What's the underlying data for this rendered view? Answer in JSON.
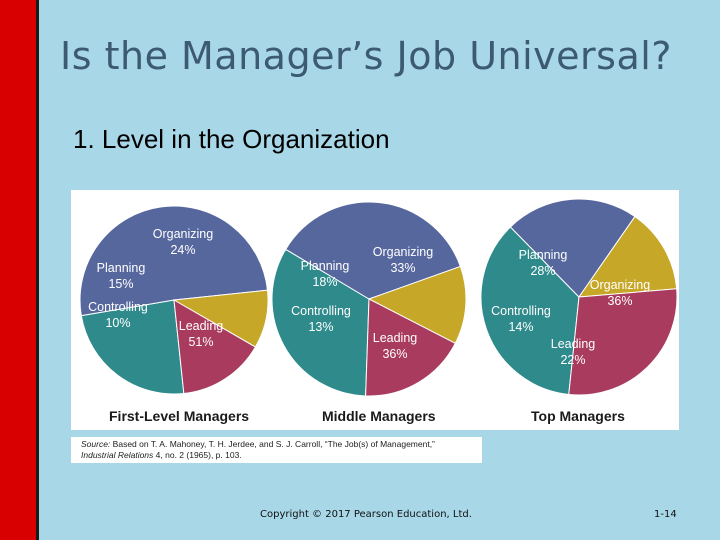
{
  "slide": {
    "title": "Is the Manager’s Job Universal?",
    "subtitle": "1. Level in the Organization",
    "source_label": "Source:",
    "source_line1": "Based on T. A. Mahoney, T. H. Jerdee, and S. J. Carroll, “The Job(s) of Management,”",
    "source_journal": "Industrial Relations",
    "source_line2_rest": "4, no. 2 (1965), p. 103.",
    "copyright": "Copyright © 2017 Pearson Education, Ltd.",
    "page_number": "1-14"
  },
  "colors": {
    "Organizing": "#2f8a8c",
    "Leading": "#56679e",
    "Controlling": "#c6a727",
    "Planning": "#a83b5e",
    "background": "#a8d8e8",
    "left_bar": "#d80000"
  },
  "chart_data": [
    {
      "type": "pie",
      "title": "First-Level Managers",
      "slices": [
        {
          "label": "Organizing",
          "value": 24,
          "display": "24%"
        },
        {
          "label": "Leading",
          "value": 51,
          "display": "51%"
        },
        {
          "label": "Controlling",
          "value": 10,
          "display": "10%"
        },
        {
          "label": "Planning",
          "value": 15,
          "display": "15%"
        }
      ]
    },
    {
      "type": "pie",
      "title": "Middle Managers",
      "slices": [
        {
          "label": "Organizing",
          "value": 33,
          "display": "33%"
        },
        {
          "label": "Leading",
          "value": 36,
          "display": "36%"
        },
        {
          "label": "Controlling",
          "value": 13,
          "display": "13%"
        },
        {
          "label": "Planning",
          "value": 18,
          "display": "18%"
        }
      ]
    },
    {
      "type": "pie",
      "title": "Top Managers",
      "slices": [
        {
          "label": "Organizing",
          "value": 36,
          "display": "36%"
        },
        {
          "label": "Leading",
          "value": 22,
          "display": "22%"
        },
        {
          "label": "Controlling",
          "value": 14,
          "display": "14%"
        },
        {
          "label": "Planning",
          "value": 28,
          "display": "28%"
        }
      ]
    }
  ]
}
